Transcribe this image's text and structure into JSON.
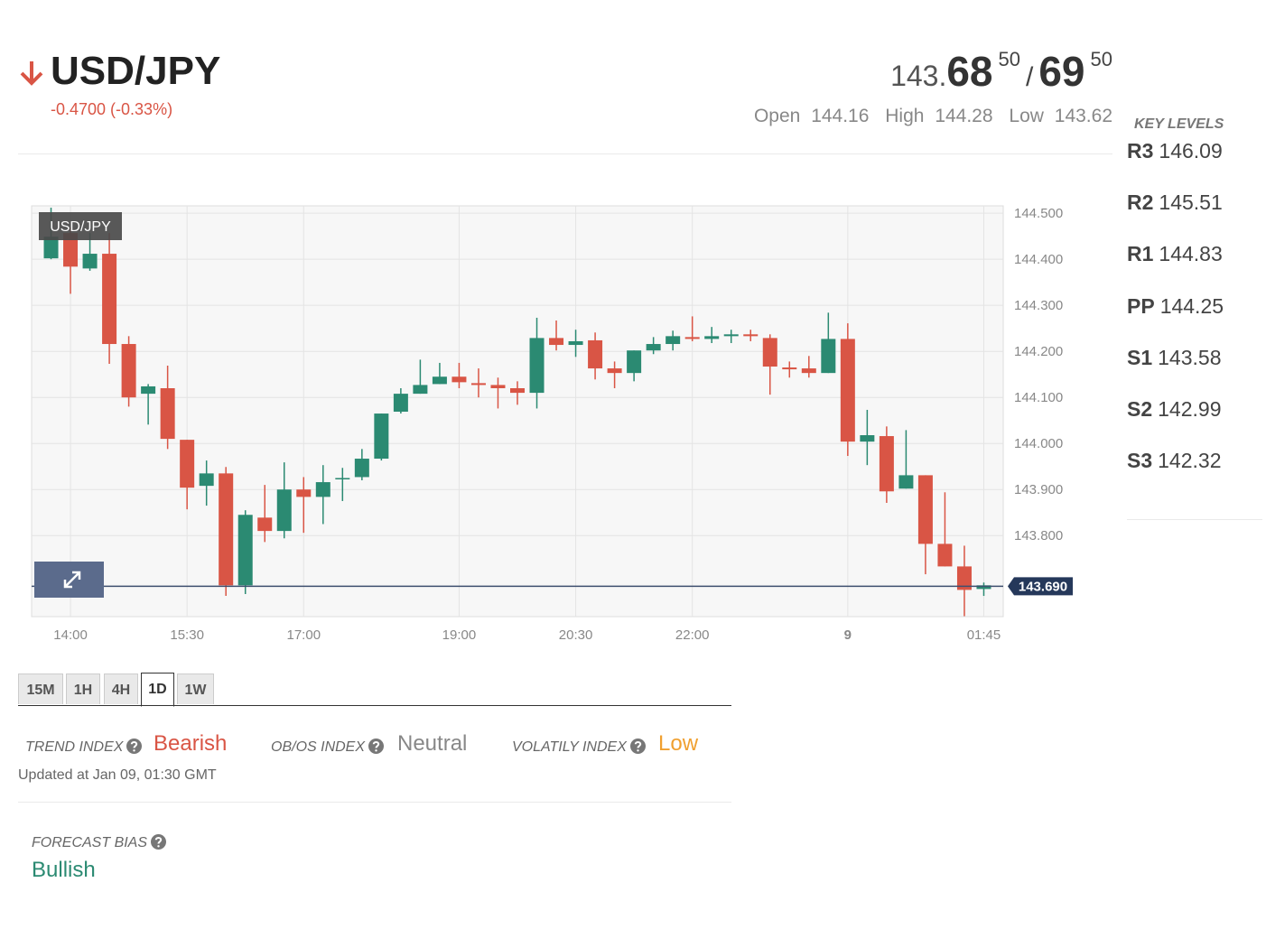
{
  "header": {
    "pair": "USD/JPY",
    "change": "-0.4700 (-0.33%)",
    "price_prefix": "143.",
    "bid_big": "68",
    "bid_small": "50",
    "separator": "/",
    "ask_big": "69",
    "ask_small": "50",
    "open_label": "Open",
    "open": "144.16",
    "high_label": "High",
    "high": "144.28",
    "low_label": "Low",
    "low": "143.62"
  },
  "key_levels": {
    "title": "KEY LEVELS",
    "levels": [
      {
        "name": "R3",
        "value": "146.09"
      },
      {
        "name": "R2",
        "value": "145.51"
      },
      {
        "name": "R1",
        "value": "144.83"
      },
      {
        "name": "PP",
        "value": "144.25"
      },
      {
        "name": "S1",
        "value": "143.58"
      },
      {
        "name": "S2",
        "value": "142.99"
      },
      {
        "name": "S3",
        "value": "142.32"
      }
    ]
  },
  "chart_data": {
    "type": "candlestick",
    "name": "USD/JPY",
    "up_color": "#2b8a72",
    "down_color": "#d95545",
    "open": [
      144.402,
      144.457,
      144.38,
      144.412,
      144.216,
      144.108,
      144.12,
      144.008,
      143.908,
      143.935,
      143.692,
      143.839,
      143.81,
      143.9,
      143.884,
      143.922,
      143.927,
      143.967,
      144.069,
      144.108,
      144.129,
      144.145,
      144.131,
      144.127,
      144.12,
      144.11,
      144.229,
      144.214,
      144.224,
      144.163,
      144.153,
      144.202,
      144.216,
      144.231,
      144.227,
      144.233,
      144.237,
      144.229,
      144.165,
      144.163,
      144.153,
      144.227,
      144.004,
      144.016,
      143.902,
      143.931,
      143.782,
      143.733,
      143.684
    ],
    "high": [
      144.512,
      144.469,
      144.457,
      144.457,
      144.233,
      144.129,
      144.169,
      144.008,
      143.963,
      143.949,
      143.855,
      143.91,
      143.959,
      143.927,
      143.953,
      143.947,
      143.988,
      144.065,
      144.12,
      144.182,
      144.175,
      144.175,
      144.163,
      144.143,
      144.135,
      144.273,
      144.267,
      144.247,
      144.241,
      144.178,
      144.202,
      144.231,
      144.245,
      144.276,
      144.253,
      144.247,
      144.247,
      144.237,
      144.178,
      144.19,
      144.284,
      144.261,
      144.073,
      144.037,
      144.029,
      143.931,
      143.894,
      143.778,
      143.698
    ],
    "low": [
      144.4,
      144.325,
      144.375,
      144.173,
      144.08,
      144.041,
      143.988,
      143.857,
      143.865,
      143.669,
      143.673,
      143.786,
      143.794,
      143.806,
      143.825,
      143.875,
      143.92,
      143.963,
      144.065,
      144.108,
      144.129,
      144.12,
      144.1,
      144.076,
      144.084,
      144.076,
      144.202,
      144.188,
      144.139,
      144.12,
      144.135,
      144.194,
      144.202,
      144.222,
      144.218,
      144.218,
      144.222,
      144.106,
      144.143,
      144.143,
      144.153,
      143.973,
      143.953,
      143.871,
      143.902,
      143.716,
      143.733,
      143.625,
      143.669
    ],
    "close": [
      144.449,
      144.384,
      144.412,
      144.216,
      144.1,
      144.124,
      144.01,
      143.904,
      143.935,
      143.692,
      143.845,
      143.81,
      143.9,
      143.884,
      143.916,
      143.925,
      143.967,
      144.065,
      144.108,
      144.127,
      144.145,
      144.133,
      144.127,
      144.12,
      144.11,
      144.229,
      144.214,
      144.222,
      144.163,
      144.153,
      144.202,
      144.216,
      144.233,
      144.227,
      144.233,
      144.237,
      144.233,
      144.167,
      144.161,
      144.153,
      144.227,
      144.004,
      144.018,
      143.896,
      143.931,
      143.782,
      143.733,
      143.682,
      143.692
    ],
    "xlim": [
      -1,
      49
    ],
    "xticks": [
      {
        "value": 1,
        "label": "14:00"
      },
      {
        "value": 7,
        "label": "15:30"
      },
      {
        "value": 13,
        "label": "17:00"
      },
      {
        "value": 21,
        "label": "19:00"
      },
      {
        "value": 27,
        "label": "20:30"
      },
      {
        "value": 33,
        "label": "22:00"
      },
      {
        "value": 41,
        "label": "9"
      },
      {
        "value": 48,
        "label": "01:45"
      }
    ],
    "ylim": [
      143.624,
      144.516
    ],
    "yticks": [
      {
        "value": 144.5,
        "label": "144.500"
      },
      {
        "value": 144.4,
        "label": "144.400"
      },
      {
        "value": 144.3,
        "label": "144.300"
      },
      {
        "value": 144.2,
        "label": "144.200"
      },
      {
        "value": 144.1,
        "label": "144.100"
      },
      {
        "value": 144.0,
        "label": "144.000"
      },
      {
        "value": 143.9,
        "label": "143.900"
      },
      {
        "value": 143.8,
        "label": "143.800"
      }
    ],
    "last_price": {
      "value": 143.69,
      "label": "143.690"
    },
    "grid": true
  },
  "timeframes": {
    "tabs": [
      "15M",
      "1H",
      "4H",
      "1D",
      "1W"
    ],
    "active": 3
  },
  "indices": [
    {
      "label": "TREND INDEX",
      "value": "Bearish",
      "color": "#d95545"
    },
    {
      "label": "OB/OS INDEX",
      "value": "Neutral",
      "color": "#888888"
    },
    {
      "label": "VOLATILY INDEX",
      "value": "Low",
      "color": "#f0a030"
    }
  ],
  "updated": "Updated at Jan 09, 01:30 GMT",
  "forecast": {
    "label": "FORECAST BIAS",
    "value": "Bullish",
    "color": "#2b8a72"
  }
}
